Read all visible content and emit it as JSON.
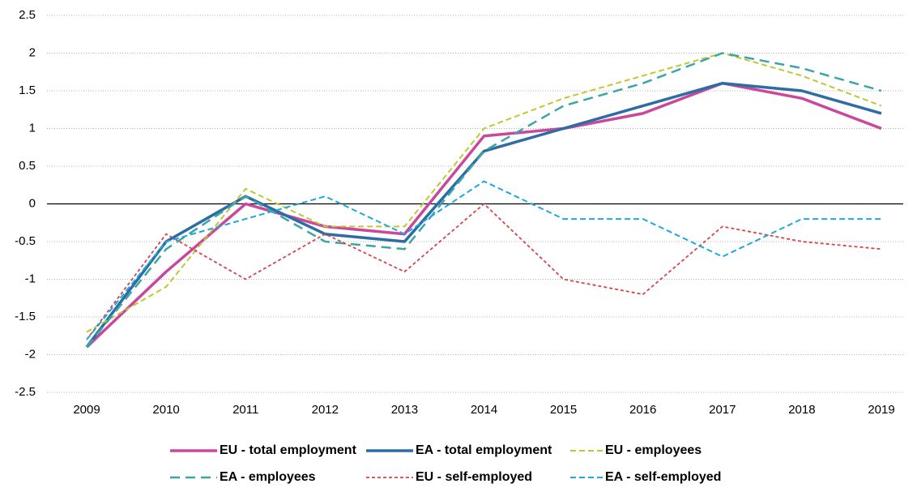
{
  "chart_data": {
    "type": "line",
    "categories": [
      "2009",
      "2010",
      "2011",
      "2012",
      "2013",
      "2014",
      "2015",
      "2016",
      "2017",
      "2018",
      "2019"
    ],
    "series": [
      {
        "name": "EU - total employment",
        "color": "#c9489b",
        "line_style": "solid",
        "values": [
          -1.9,
          -0.9,
          0.0,
          -0.3,
          -0.4,
          0.9,
          1.0,
          1.2,
          1.6,
          1.4,
          1.0
        ]
      },
      {
        "name": "EA - total employment",
        "color": "#2e6ca4",
        "line_style": "solid",
        "values": [
          -1.9,
          -0.5,
          0.1,
          -0.4,
          -0.5,
          0.7,
          1.0,
          1.3,
          1.6,
          1.5,
          1.2
        ]
      },
      {
        "name": "EU - employees",
        "color": "#bfc830",
        "line_style": "dashed",
        "values": [
          -1.7,
          -1.1,
          0.2,
          -0.3,
          -0.3,
          1.0,
          1.4,
          1.7,
          2.0,
          1.7,
          1.3
        ]
      },
      {
        "name": "EA - employees",
        "color": "#3aa6a6",
        "line_style": "long-dashed",
        "values": [
          -1.9,
          -0.6,
          0.1,
          -0.5,
          -0.6,
          0.7,
          1.3,
          1.6,
          2.0,
          1.8,
          1.5
        ]
      },
      {
        "name": "EU - self-employed",
        "color": "#d9434b",
        "line_style": "dotted",
        "values": [
          -1.8,
          -0.4,
          -1.0,
          -0.4,
          -0.9,
          0.0,
          -1.0,
          -1.2,
          -0.3,
          -0.5,
          -0.6
        ]
      },
      {
        "name": "EA - self-employed",
        "color": "#1ea7e0",
        "line_style": "dashed",
        "values": [
          -1.8,
          -0.5,
          -0.2,
          0.1,
          -0.4,
          0.3,
          -0.2,
          -0.2,
          -0.7,
          -0.2,
          -0.2
        ]
      }
    ],
    "ylim": [
      -2.5,
      2.5
    ],
    "yticks": [
      2.5,
      2,
      1.5,
      1,
      0.5,
      0,
      -0.5,
      -1,
      -1.5,
      -2,
      -2.5
    ],
    "grid": true,
    "legend": "bottom"
  }
}
